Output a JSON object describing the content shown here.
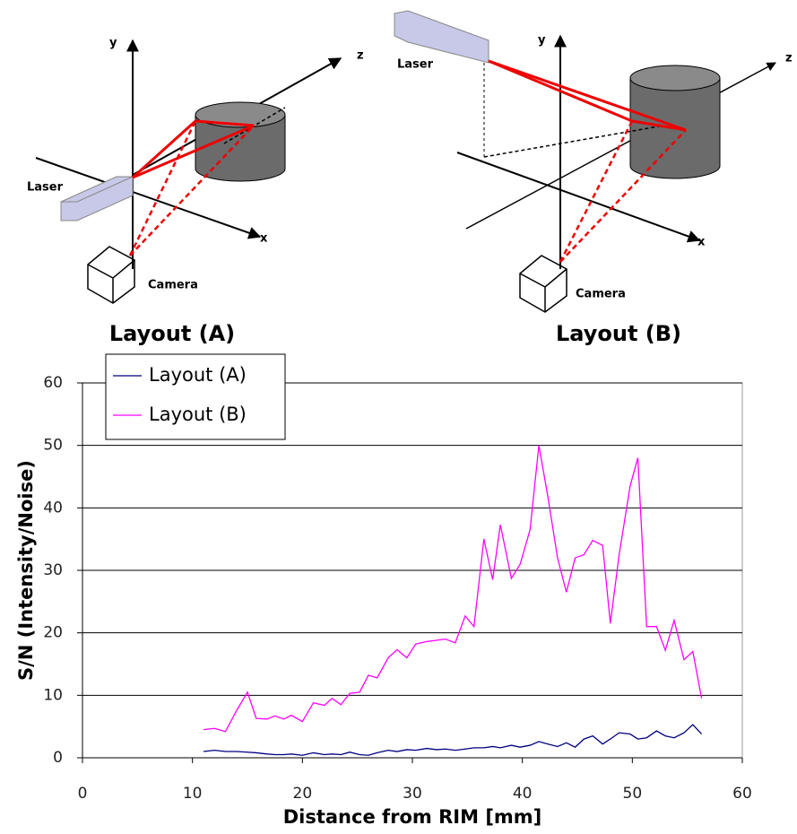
{
  "diagrams": [
    {
      "caption": "Layout (A)",
      "axis_y": "y",
      "axis_z": "z",
      "axis_x": "x",
      "laser": "Laser",
      "camera": "Camera"
    },
    {
      "caption": "Layout (B)",
      "axis_y": "y",
      "axis_z": "z",
      "axis_x": "x",
      "laser": "Laser",
      "camera": "Camera"
    }
  ],
  "chart_data": {
    "type": "line",
    "xlabel": "Distance from RIM [mm]",
    "ylabel": "S/N  (Intensity/Noise)",
    "x": [
      11,
      12,
      13,
      14,
      15,
      15.8,
      16.8,
      17.5,
      18.3,
      19,
      20,
      21,
      22,
      22.7,
      23.5,
      24.3,
      25.2,
      26,
      26.8,
      27.8,
      28.6,
      29.5,
      30.3,
      31.3,
      32.2,
      33,
      33.9,
      34.8,
      35.6,
      36.5,
      37.3,
      38,
      39,
      39.8,
      40.7,
      41.5,
      42.3,
      43.2,
      44,
      44.8,
      45.6,
      46.4,
      47.3,
      48,
      48.8,
      49.8,
      50.5,
      51.3,
      52.2,
      53,
      53.8,
      54.7,
      55.5,
      56.3
    ],
    "series": [
      {
        "name": "Layout (A)",
        "color": "#000080",
        "values": [
          1.0,
          1.2,
          1.0,
          1.0,
          0.9,
          0.8,
          0.6,
          0.5,
          0.5,
          0.6,
          0.4,
          0.8,
          0.5,
          0.6,
          0.5,
          0.9,
          0.5,
          0.4,
          0.8,
          1.2,
          1.0,
          1.3,
          1.2,
          1.5,
          1.3,
          1.4,
          1.2,
          1.4,
          1.6,
          1.6,
          1.8,
          1.6,
          2.0,
          1.7,
          2.0,
          2.6,
          2.2,
          1.8,
          2.4,
          1.7,
          3.0,
          3.5,
          2.2,
          3.0,
          4.0,
          3.8,
          3.0,
          3.2,
          4.3,
          3.5,
          3.2,
          4.0,
          5.3,
          3.8
        ]
      },
      {
        "name": "Layout (B)",
        "color": "#ff00ff",
        "values": [
          4.5,
          4.7,
          4.2,
          7.5,
          10.5,
          6.3,
          6.2,
          6.7,
          6.2,
          6.8,
          5.8,
          8.8,
          8.4,
          9.5,
          8.5,
          10.3,
          10.5,
          13.2,
          12.8,
          16,
          17.3,
          16,
          18.2,
          18.6,
          18.8,
          19,
          18.4,
          22.7,
          21,
          35,
          28.5,
          37.3,
          28.7,
          31,
          36.5,
          50,
          42,
          32,
          26.5,
          32,
          32.5,
          34.8,
          34,
          21.5,
          32.5,
          43.5,
          48,
          21,
          21,
          17.2,
          22,
          15.7,
          17,
          9.5
        ]
      }
    ],
    "xlim": [
      0,
      60
    ],
    "xticks": [
      0,
      10,
      20,
      30,
      40,
      50,
      60
    ],
    "ylim": [
      0,
      60
    ],
    "yticks": [
      0,
      10,
      20,
      30,
      40,
      50,
      60
    ],
    "grid": true,
    "legend": "top-left"
  }
}
